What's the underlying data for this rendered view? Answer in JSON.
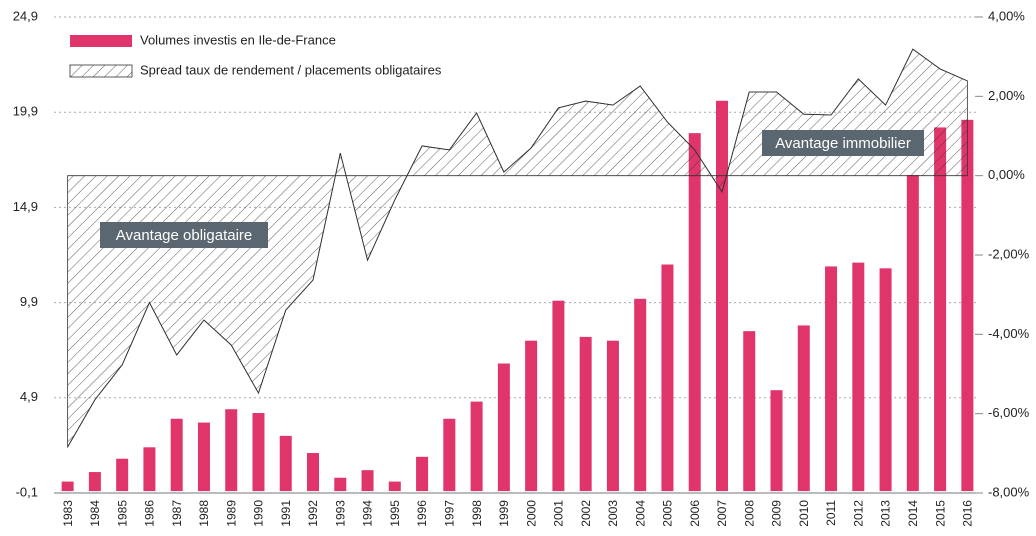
{
  "chart_data": {
    "type": "bar-area",
    "categories": [
      "1983",
      "1984",
      "1985",
      "1986",
      "1987",
      "1988",
      "1989",
      "1990",
      "1991",
      "1992",
      "1993",
      "1994",
      "1995",
      "1996",
      "1997",
      "1998",
      "1999",
      "2000",
      "2001",
      "2002",
      "2003",
      "2004",
      "2005",
      "2006",
      "2007",
      "2008",
      "2009",
      "2010",
      "2011",
      "2012",
      "2013",
      "2014",
      "2015",
      "2016"
    ],
    "series": [
      {
        "name": "Volumes investis en Ile-de-France",
        "color": "#e0356b",
        "values": [
          0.5,
          1.0,
          1.7,
          2.3,
          3.8,
          3.6,
          4.3,
          4.1,
          2.9,
          2.0,
          0.7,
          1.1,
          0.5,
          1.8,
          3.8,
          4.7,
          6.7,
          7.9,
          10.0,
          8.1,
          7.9,
          10.1,
          11.9,
          18.8,
          20.5,
          8.4,
          5.3,
          8.7,
          11.8,
          12.0,
          11.7,
          16.6,
          19.1,
          19.5
        ]
      },
      {
        "name": "Spread taux de rendement / placements obligataires",
        "color": "#333333",
        "axis": "y2",
        "values": [
          -6.84,
          -5.65,
          -4.77,
          -3.2,
          -4.52,
          -3.64,
          -4.27,
          -5.48,
          -3.39,
          -2.63,
          0.57,
          -2.13,
          -0.61,
          0.75,
          0.65,
          1.58,
          0.09,
          0.7,
          1.71,
          1.88,
          1.78,
          2.26,
          1.35,
          0.65,
          -0.41,
          2.11,
          2.11,
          1.55,
          1.53,
          2.44,
          1.78,
          3.19,
          2.69,
          2.39
        ]
      }
    ],
    "ylim": [
      -0.1,
      24.9
    ],
    "yticks": [
      {
        "value": -0.1,
        "label": "-0,1"
      },
      {
        "value": 4.9,
        "label": "4,9"
      },
      {
        "value": 9.9,
        "label": "9,9"
      },
      {
        "value": 14.9,
        "label": "14,9"
      },
      {
        "value": 19.9,
        "label": "19,9"
      },
      {
        "value": 24.9,
        "label": "24,9"
      }
    ],
    "y2lim": [
      -8,
      4
    ],
    "y2ticks": [
      {
        "value": -8,
        "label": "-8,00%"
      },
      {
        "value": -6,
        "label": "-6,00%"
      },
      {
        "value": -4,
        "label": "-4,00%"
      },
      {
        "value": -2,
        "label": "-2,00%"
      },
      {
        "value": 0,
        "label": "0,00%"
      },
      {
        "value": 2,
        "label": "2,00%"
      },
      {
        "value": 4,
        "label": "4,00%"
      }
    ],
    "grid": true,
    "annotations": [
      "Avantage obligataire",
      "Avantage immobilier"
    ]
  }
}
